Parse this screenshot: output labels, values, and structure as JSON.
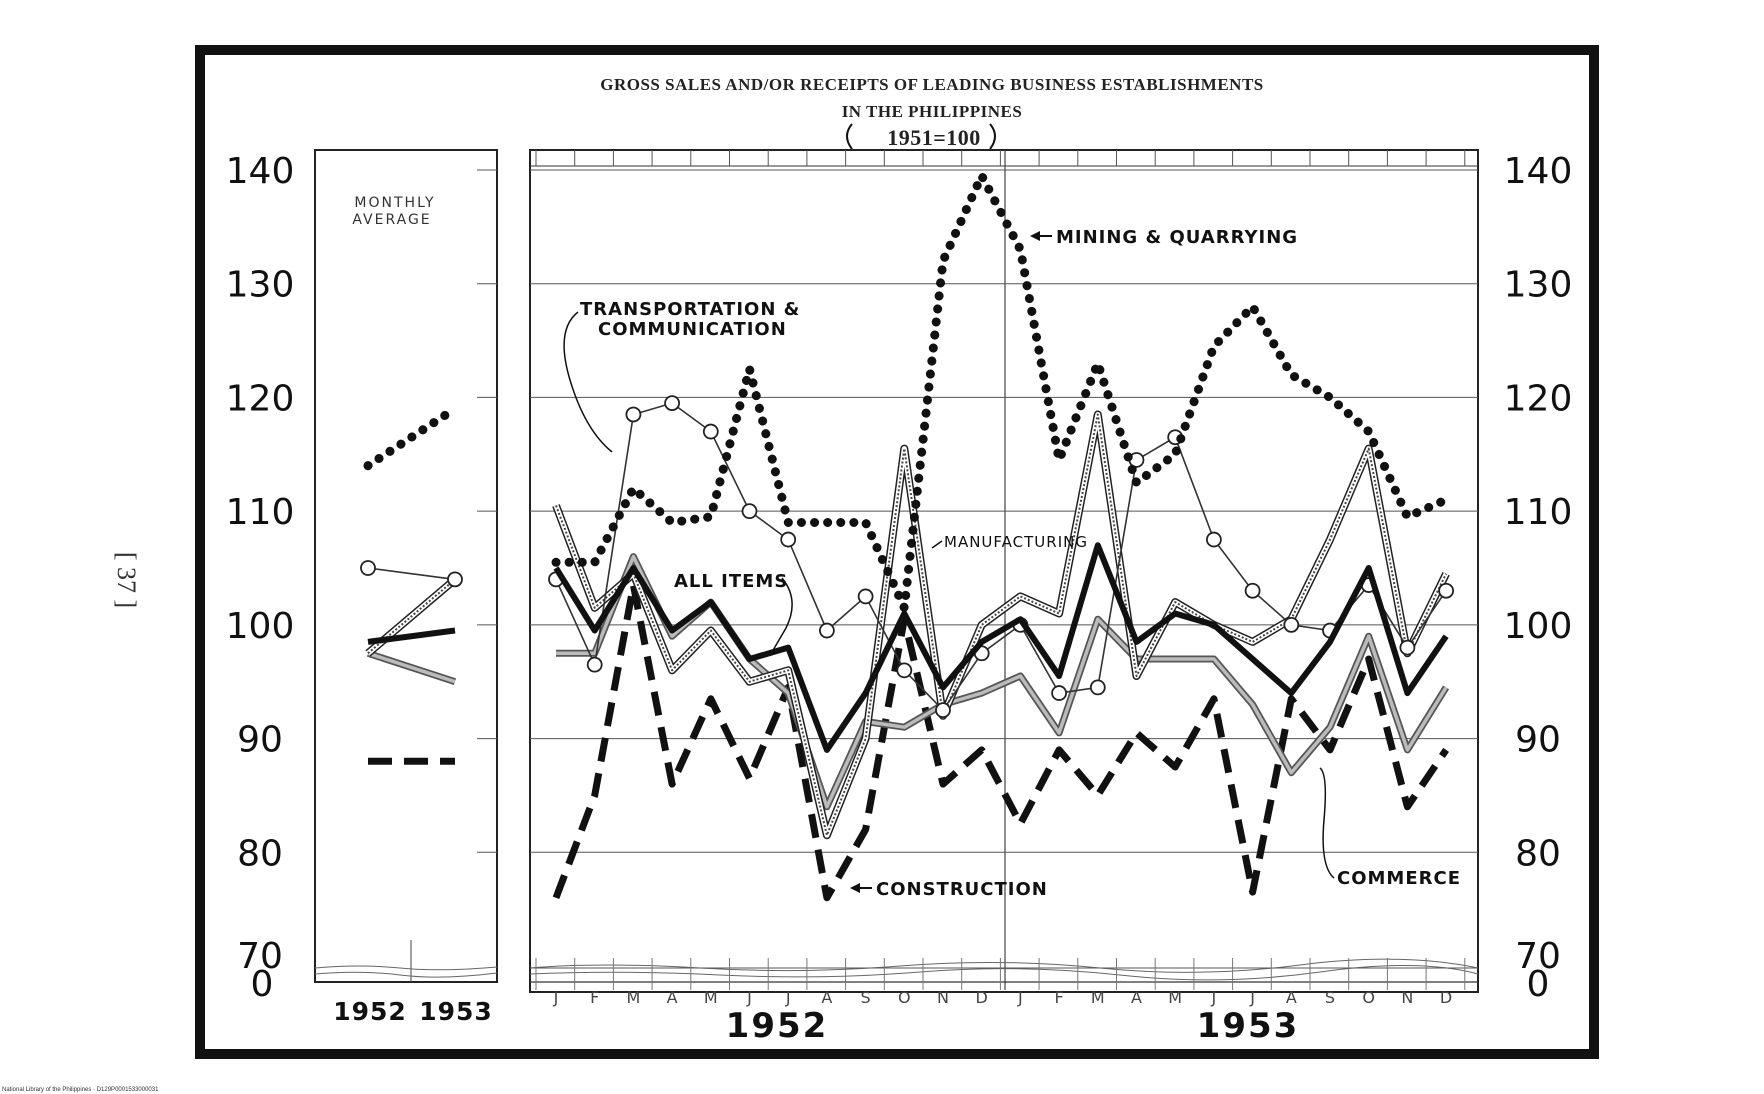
{
  "page_number": "[ 37 ]",
  "footer": "National Library of the Philippines · D129P0001533000031",
  "chart_data": {
    "type": "line",
    "title": "GROSS SALES AND/OR RECEIPTS OF LEADING BUSINESS ESTABLISHMENTS",
    "subtitle": "IN THE PHILIPPINES",
    "base_note": "1951=100",
    "left_panel_label": [
      "MONTHLY",
      "AVERAGE"
    ],
    "y_ticks": [
      "140",
      "130",
      "120",
      "110",
      "100",
      "90",
      "80",
      "70"
    ],
    "y_zero_label": "0",
    "ylim": [
      70,
      140
    ],
    "months": [
      "J",
      "F",
      "M",
      "A",
      "M",
      "J",
      "J",
      "A",
      "S",
      "O",
      "N",
      "D",
      "J",
      "F",
      "M",
      "A",
      "M",
      "J",
      "J",
      "A",
      "S",
      "O",
      "N",
      "D"
    ],
    "years": [
      "1952",
      "1953"
    ],
    "avg_years": [
      "1952",
      "1953"
    ],
    "series": [
      {
        "key": "mining",
        "label": "MINING & QUARRYING",
        "style": "dotted",
        "values": [
          105.5,
          105.5,
          112,
          109,
          109.5,
          122.5,
          109,
          109,
          109,
          101.5,
          132,
          139.5,
          133,
          114.5,
          123,
          112.5,
          115,
          124.5,
          128,
          122,
          120,
          117,
          109.5,
          111
        ],
        "avg": [
          114,
          119
        ]
      },
      {
        "key": "transport",
        "label_lines": [
          "TRANSPORTATION &",
          "COMMUNICATION"
        ],
        "style": "open-circles",
        "values": [
          104,
          96.5,
          118.5,
          119.5,
          117,
          110,
          107.5,
          99.5,
          102.5,
          96,
          92.5,
          97.5,
          100,
          94,
          94.5,
          114.5,
          116.5,
          107.5,
          103,
          100,
          99.5,
          103.5,
          98,
          103
        ],
        "avg": [
          105,
          104
        ]
      },
      {
        "key": "manufacturing",
        "label": "MANUFACTURING",
        "style": "hatched",
        "values": [
          110.5,
          101.5,
          104.5,
          96,
          99.5,
          95,
          96,
          81.5,
          90,
          115.5,
          92,
          100,
          102.5,
          101,
          118.5,
          95.5,
          102,
          100,
          98.5,
          100.5,
          107.5,
          115.5,
          97.5,
          104.5
        ],
        "avg": [
          97.5,
          104
        ]
      },
      {
        "key": "all_items",
        "label": "ALL ITEMS",
        "style": "solid-thick",
        "values": [
          105,
          99.5,
          105,
          99.5,
          102,
          97,
          98,
          89,
          94,
          101,
          94.5,
          98.5,
          100.5,
          95.5,
          107,
          98.5,
          101,
          100,
          97,
          94,
          98.5,
          105,
          94,
          99
        ],
        "avg": [
          98.5,
          99.5
        ]
      },
      {
        "key": "commerce",
        "label": "COMMERCE",
        "style": "shaded",
        "values": [
          97.5,
          97.5,
          106,
          99,
          102,
          97,
          94,
          84,
          91.5,
          91,
          93,
          94,
          95.5,
          90.5,
          100.5,
          97,
          97,
          97,
          93,
          87,
          91,
          99,
          89,
          94.5
        ],
        "avg": [
          97.5,
          95
        ]
      },
      {
        "key": "construction",
        "label": "CONSTRUCTION",
        "style": "dashed",
        "values": [
          76,
          85,
          103.5,
          86,
          93.5,
          86.5,
          94.5,
          76,
          82,
          100.5,
          86,
          89,
          82.5,
          89,
          85,
          90.5,
          87.5,
          93.5,
          76.5,
          93.5,
          89,
          97,
          84,
          89
        ],
        "avg": [
          88,
          88
        ]
      }
    ]
  }
}
